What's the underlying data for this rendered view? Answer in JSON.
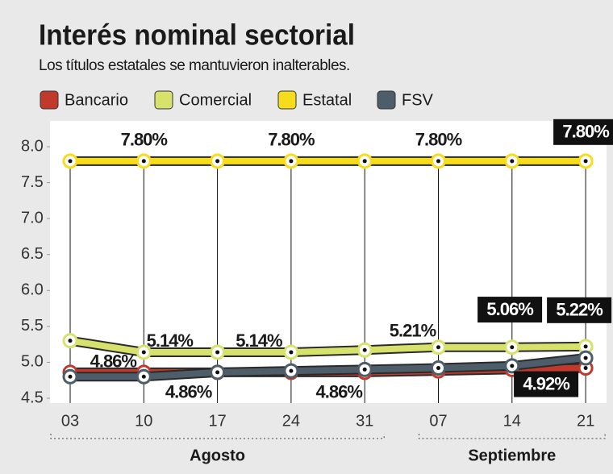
{
  "chart_data": {
    "type": "line",
    "title": "Interés nominal sectorial",
    "subtitle": "Los títulos estatales se mantuvieron inalterables.",
    "categories": [
      "03",
      "10",
      "17",
      "24",
      "31",
      "07",
      "14",
      "21"
    ],
    "groups": [
      {
        "label": "Agosto",
        "count": 5
      },
      {
        "label": "Septiembre",
        "count": 3
      }
    ],
    "series": [
      {
        "name": "Bancario",
        "color": "#c0392b",
        "values": [
          4.86,
          4.86,
          4.86,
          4.86,
          4.86,
          4.88,
          4.9,
          4.92
        ],
        "value_labels": [
          null,
          "4.86%",
          "4.86%",
          null,
          "4.86%",
          null,
          null,
          "4.92%"
        ]
      },
      {
        "name": "Comercial",
        "color": "#d6e26c",
        "values": [
          5.3,
          5.14,
          5.14,
          5.14,
          5.17,
          5.21,
          5.21,
          5.22
        ],
        "value_labels": [
          null,
          "5.14%",
          null,
          "5.14%",
          null,
          "5.21%",
          null,
          "5.22%"
        ]
      },
      {
        "name": "Estatal",
        "color": "#f7dc1c",
        "values": [
          7.8,
          7.8,
          7.8,
          7.8,
          7.8,
          7.8,
          7.8,
          7.8
        ],
        "value_labels": [
          null,
          "7.80%",
          null,
          "7.80%",
          null,
          "7.80%",
          null,
          "7.80%"
        ]
      },
      {
        "name": "FSV",
        "color": "#4d5d69",
        "values": [
          4.8,
          4.8,
          4.86,
          4.88,
          4.9,
          4.92,
          4.95,
          5.06
        ],
        "value_labels": [
          null,
          null,
          null,
          null,
          null,
          null,
          null,
          "5.06%"
        ]
      }
    ],
    "ylim": [
      4.5,
      8.0
    ],
    "yticks": [
      4.5,
      {
        "value": 5.0,
        "label": "5.0"
      },
      5.5,
      {
        "value": 6.0,
        "label": "6.0"
      },
      6.5,
      {
        "value": 7.0,
        "label": "7.0"
      },
      7.5,
      {
        "value": 8.0,
        "label": "8.0"
      }
    ]
  }
}
